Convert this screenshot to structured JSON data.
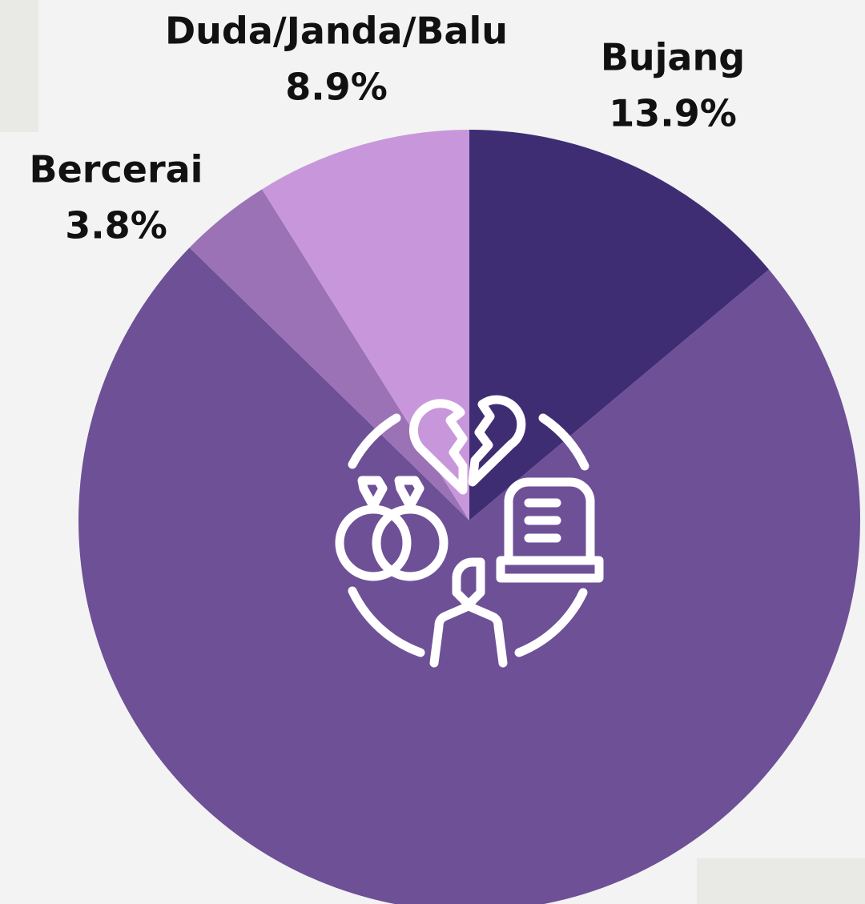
{
  "chart_data": {
    "type": "pie",
    "categories": [
      "Bujang",
      null,
      "Bercerai",
      "Duda/Janda/Balu"
    ],
    "values": [
      13.9,
      73.4,
      3.8,
      8.9
    ],
    "value_labels": [
      "13.9%",
      null,
      "3.8%",
      "8.9%"
    ],
    "colors": [
      "#3f2d73",
      "#6e5097",
      "#9b72b6",
      "#c897db"
    ]
  }
}
